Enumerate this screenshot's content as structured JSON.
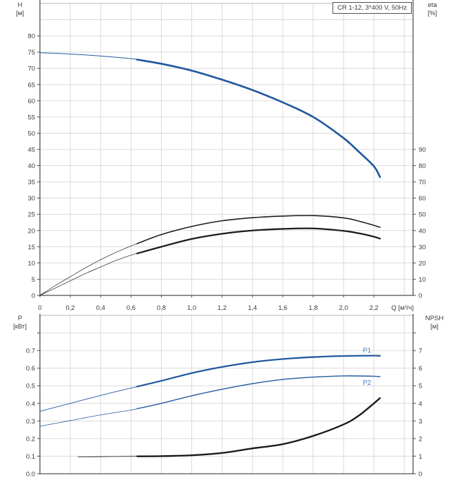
{
  "colors": {
    "curve_blue": "#20599e",
    "series_label_blue": "#4d7fc0",
    "curve_black": "#1a1a1a",
    "grid": "#d9d9d9",
    "frame": "#b3b3b3",
    "axis": "#4d4d4d",
    "text": "#3a3a3a"
  },
  "title_box": {
    "text": "CR 1-12, 3*400 V, 50Hz"
  },
  "top_chart": {
    "y_left_title_1": "H",
    "y_left_title_2": "[м]",
    "y_right_title_1": "eta",
    "y_right_title_2": "[%]"
  },
  "bottom_chart": {
    "y_left_title_1": "P",
    "y_left_title_2": "[кВт]",
    "y_right_title_1": "NPSH",
    "y_right_title_2": "[м]",
    "series_labels": {
      "p1": "P1",
      "p2": "P2"
    }
  },
  "chart_data": [
    {
      "type": "line",
      "name": "qh-efficiency-chart",
      "title": "CR 1-12, 3*400 V, 50Hz",
      "x_axis": {
        "label": "Q [м³/ч]",
        "min": 0,
        "max": 2.458,
        "grid_step": 0.2,
        "grid_max": 2.4,
        "tick_values": [
          0,
          0.2,
          0.4,
          0.6,
          0.8,
          1.0,
          1.2,
          1.4,
          1.6,
          1.8,
          2.0,
          2.2
        ],
        "tick_labels": [
          "0",
          "0,2",
          "0,4",
          "0,6",
          "0,8",
          "1,0",
          "1,2",
          "1,4",
          "1,6",
          "1,8",
          "2,0",
          "2,2"
        ]
      },
      "y_left_axis": {
        "label": "H [м]",
        "min": 0,
        "max": 90,
        "grid_step": 5,
        "tick_values": [
          0,
          5,
          10,
          15,
          20,
          25,
          30,
          35,
          40,
          45,
          50,
          55,
          60,
          65,
          70,
          75,
          80
        ],
        "tick_labels": [
          "0",
          "5",
          "10",
          "15",
          "20",
          "25",
          "30",
          "35",
          "40",
          "45",
          "50",
          "55",
          "60",
          "65",
          "70",
          "75",
          "80"
        ]
      },
      "y_right_axis": {
        "label": "eta [%]",
        "min": 0,
        "max": 180,
        "tick_values": [
          0,
          10,
          20,
          30,
          40,
          50,
          60,
          70,
          80,
          90
        ],
        "tick_labels": [
          "0",
          "10",
          "20",
          "30",
          "40",
          "50",
          "60",
          "70",
          "80",
          "90"
        ]
      },
      "series": [
        {
          "name": "H",
          "axis": "left",
          "color": "#20599e",
          "thin_width": 1.0,
          "thick_width": 2.7,
          "thick_from": 0.64,
          "points": [
            [
              0,
              74.8
            ],
            [
              0.2,
              74.4
            ],
            [
              0.4,
              73.8
            ],
            [
              0.6,
              73.0
            ],
            [
              0.8,
              71.4
            ],
            [
              1.0,
              69.3
            ],
            [
              1.2,
              66.5
            ],
            [
              1.4,
              63.3
            ],
            [
              1.6,
              59.5
            ],
            [
              1.8,
              55.0
            ],
            [
              2.0,
              48.5
            ],
            [
              2.1,
              44.3
            ],
            [
              2.2,
              39.8
            ],
            [
              2.24,
              36.5
            ]
          ]
        },
        {
          "name": "eta",
          "axis": "right",
          "color": "#1a1a1a",
          "thin_width": 0.7,
          "thick_width": 1.6,
          "thick_from": 0.64,
          "points": [
            [
              0,
              0
            ],
            [
              0.1,
              6
            ],
            [
              0.2,
              11.5
            ],
            [
              0.3,
              17
            ],
            [
              0.4,
              22
            ],
            [
              0.5,
              26.5
            ],
            [
              0.6,
              30.5
            ],
            [
              0.8,
              37.5
            ],
            [
              1.0,
              42.5
            ],
            [
              1.2,
              46
            ],
            [
              1.4,
              47.9
            ],
            [
              1.6,
              48.9
            ],
            [
              1.8,
              49.2
            ],
            [
              2.0,
              47.8
            ],
            [
              2.1,
              45.8
            ],
            [
              2.2,
              43.2
            ],
            [
              2.24,
              42.0
            ]
          ]
        },
        {
          "name": "eta-total",
          "axis": "right",
          "color": "#1a1a1a",
          "thin_width": 0.7,
          "thick_width": 2.3,
          "thick_from": 0.64,
          "points": [
            [
              0,
              0
            ],
            [
              0.1,
              4.5
            ],
            [
              0.2,
              9
            ],
            [
              0.3,
              13.5
            ],
            [
              0.4,
              17.5
            ],
            [
              0.5,
              21.5
            ],
            [
              0.6,
              24.8
            ],
            [
              0.8,
              30
            ],
            [
              1.0,
              34.8
            ],
            [
              1.2,
              38
            ],
            [
              1.4,
              40
            ],
            [
              1.6,
              41
            ],
            [
              1.8,
              41.3
            ],
            [
              2.0,
              39.8
            ],
            [
              2.1,
              38.3
            ],
            [
              2.2,
              36.2
            ],
            [
              2.24,
              35.0
            ]
          ]
        }
      ]
    },
    {
      "type": "line",
      "name": "power-npsh-chart",
      "title": "",
      "x_axis": {
        "label": "",
        "min": 0,
        "max": 2.458,
        "grid_step": 0.2,
        "grid_max": 2.4,
        "tick_values": [],
        "tick_labels": []
      },
      "y_left_axis": {
        "label": "P [кВт]",
        "min": 0,
        "max": 0.9,
        "grid_step": 0.1,
        "tick_values": [
          0,
          0.1,
          0.2,
          0.3,
          0.4,
          0.5,
          0.6,
          0.7,
          0.8
        ],
        "tick_labels": [
          "0.0",
          "0.1",
          "0.2",
          "0.3",
          "0.4",
          "0.5",
          "0.6",
          "0.7",
          ""
        ]
      },
      "y_right_axis": {
        "label": "NPSH [м]",
        "min": 0,
        "max": 9,
        "tick_values": [
          0,
          1,
          2,
          3,
          4,
          5,
          6,
          7,
          8
        ],
        "tick_labels": [
          "0",
          "1",
          "2",
          "3",
          "4",
          "5",
          "6",
          "7",
          ""
        ]
      },
      "series": [
        {
          "name": "P1",
          "axis": "left",
          "color": "#20599e",
          "thin_width": 0.9,
          "thick_width": 2.3,
          "thick_from": 0.64,
          "points": [
            [
              0,
              0.355
            ],
            [
              0.2,
              0.4
            ],
            [
              0.4,
              0.445
            ],
            [
              0.6,
              0.487
            ],
            [
              0.8,
              0.528
            ],
            [
              1.0,
              0.572
            ],
            [
              1.2,
              0.607
            ],
            [
              1.4,
              0.634
            ],
            [
              1.6,
              0.652
            ],
            [
              1.8,
              0.663
            ],
            [
              2.0,
              0.669
            ],
            [
              2.2,
              0.671
            ],
            [
              2.24,
              0.67
            ]
          ]
        },
        {
          "name": "P2",
          "axis": "left",
          "color": "#20599e",
          "thin_width": 0.8,
          "thick_width": 1.4,
          "thick_from": 0.64,
          "points": [
            [
              0,
              0.27
            ],
            [
              0.2,
              0.302
            ],
            [
              0.4,
              0.334
            ],
            [
              0.6,
              0.362
            ],
            [
              0.8,
              0.4
            ],
            [
              1.0,
              0.443
            ],
            [
              1.2,
              0.48
            ],
            [
              1.4,
              0.512
            ],
            [
              1.6,
              0.536
            ],
            [
              1.8,
              0.549
            ],
            [
              2.0,
              0.556
            ],
            [
              2.2,
              0.554
            ],
            [
              2.24,
              0.551
            ]
          ]
        },
        {
          "name": "NPSH",
          "axis": "right",
          "color": "#1a1a1a",
          "thin_width": 0.8,
          "thick_width": 2.4,
          "thick_from": 0.64,
          "points": [
            [
              0.25,
              0.95
            ],
            [
              0.4,
              0.97
            ],
            [
              0.6,
              0.99
            ],
            [
              0.8,
              1.0
            ],
            [
              1.0,
              1.05
            ],
            [
              1.2,
              1.18
            ],
            [
              1.4,
              1.44
            ],
            [
              1.6,
              1.68
            ],
            [
              1.8,
              2.15
            ],
            [
              2.0,
              2.8
            ],
            [
              2.1,
              3.3
            ],
            [
              2.2,
              4.0
            ],
            [
              2.24,
              4.3
            ]
          ]
        }
      ]
    }
  ]
}
